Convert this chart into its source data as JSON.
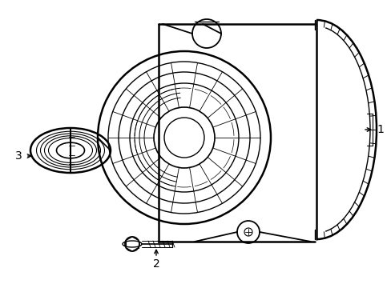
{
  "background_color": "#ffffff",
  "line_color": "#000000",
  "label_1": "1",
  "label_2": "2",
  "label_3": "3",
  "fig_width": 4.89,
  "fig_height": 3.6,
  "dpi": 100
}
